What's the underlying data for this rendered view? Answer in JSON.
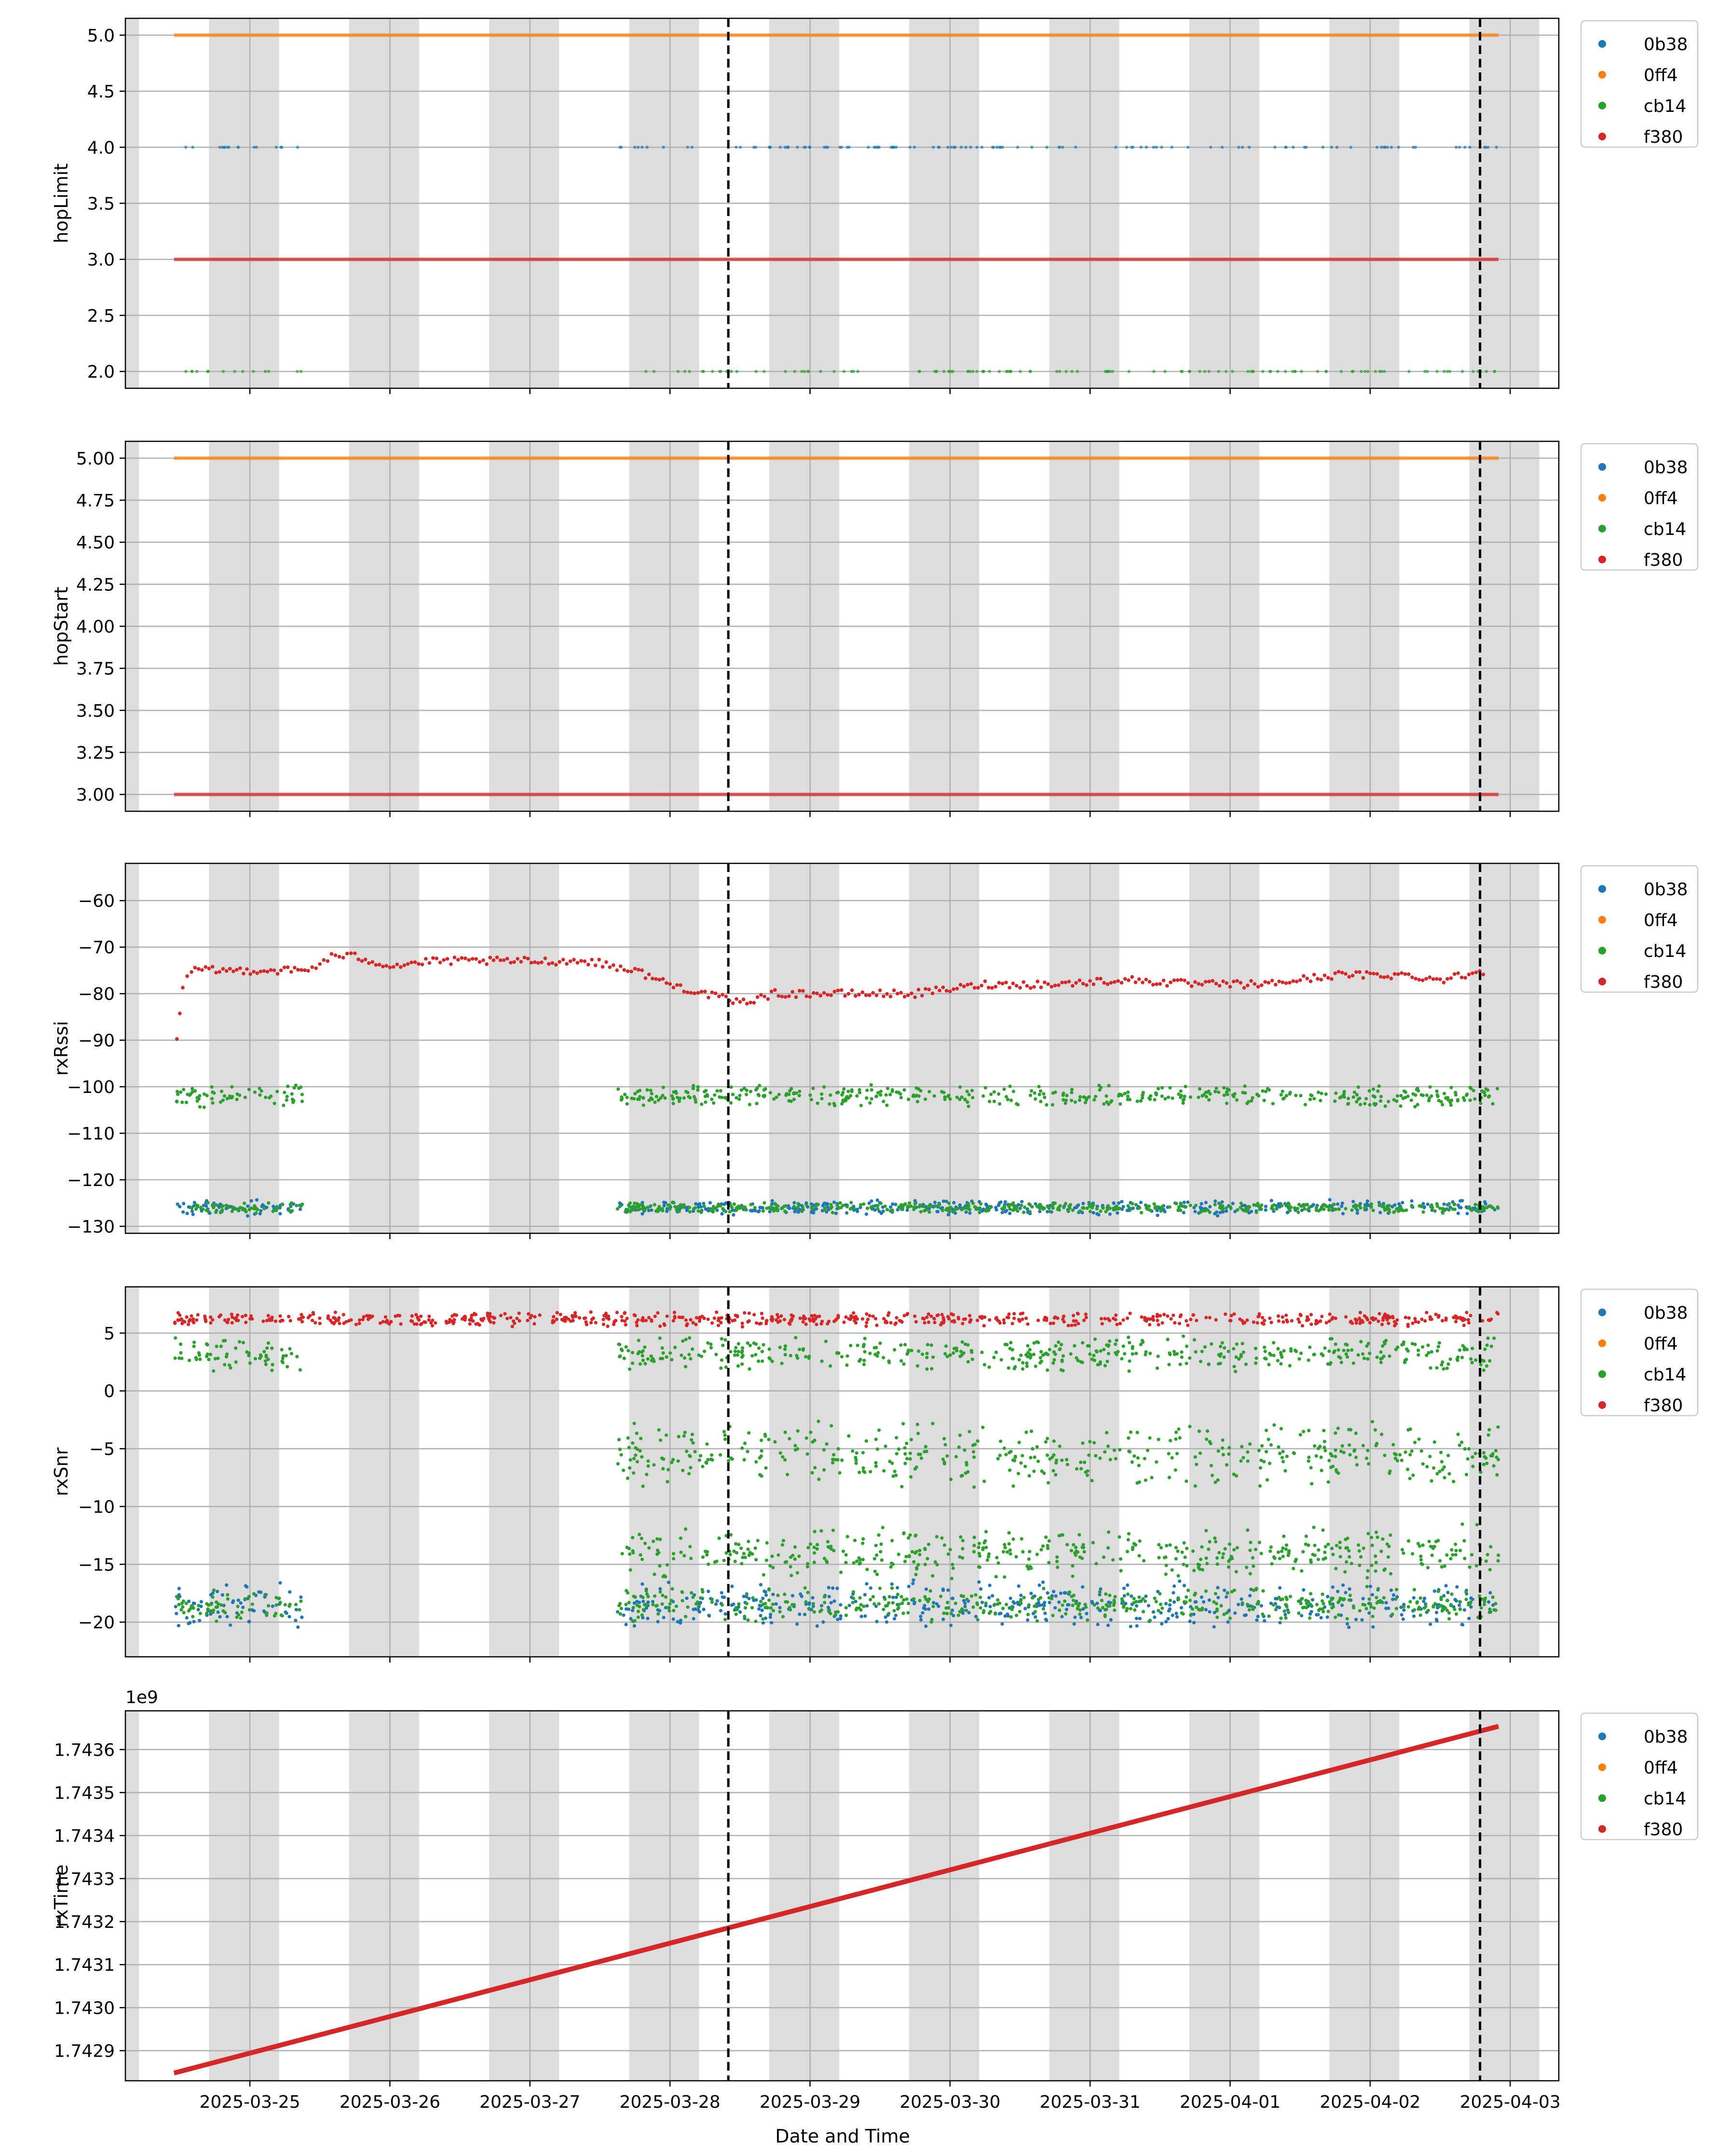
{
  "xaxis": {
    "label": "Date and Time",
    "ticks": [
      "2025-03-25",
      "2025-03-26",
      "2025-03-27",
      "2025-03-28",
      "2025-03-29",
      "2025-03-30",
      "2025-03-31",
      "2025-04-01",
      "2025-04-02",
      "2025-04-03"
    ],
    "range": [
      "2025-03-24 02:40",
      "2025-04-03 08:20"
    ]
  },
  "night_bands": [
    [
      "2025-03-24 02:40",
      "2025-03-24 05:00"
    ],
    [
      "2025-03-24 17:00",
      "2025-03-25 05:00"
    ],
    [
      "2025-03-25 17:00",
      "2025-03-26 05:00"
    ],
    [
      "2025-03-26 17:00",
      "2025-03-27 05:00"
    ],
    [
      "2025-03-27 17:00",
      "2025-03-28 05:00"
    ],
    [
      "2025-03-28 17:00",
      "2025-03-29 05:00"
    ],
    [
      "2025-03-29 17:00",
      "2025-03-30 05:00"
    ],
    [
      "2025-03-30 17:00",
      "2025-03-31 05:00"
    ],
    [
      "2025-03-31 17:00",
      "2025-04-01 05:00"
    ],
    [
      "2025-04-01 17:00",
      "2025-04-02 05:00"
    ],
    [
      "2025-04-02 17:00",
      "2025-04-03 05:00"
    ]
  ],
  "vlines": [
    "2025-03-28 10:00",
    "2025-04-02 18:50"
  ],
  "series_colors": {
    "0b38": "#1f77b4",
    "0ff4": "#ff7f0e",
    "cb14": "#2ca02c",
    "f380": "#d62728"
  },
  "legend": {
    "placement": "outside-upper-right",
    "entries": [
      "0b38",
      "0ff4",
      "cb14",
      "f380"
    ]
  },
  "chart_data": [
    {
      "type": "scatter",
      "ylabel": "hopLimit",
      "ylim": [
        1.85,
        5.15
      ],
      "yticks": [
        "2.0",
        "2.5",
        "3.0",
        "3.5",
        "4.0",
        "4.5",
        "5.0"
      ],
      "grid": true,
      "series": [
        {
          "name": "0ff4",
          "kind": "constant",
          "y": 5.0,
          "segments": [
            [
              "2025-03-24 11:00",
              "2025-04-02 22:00"
            ]
          ]
        },
        {
          "name": "0b38",
          "kind": "scatter",
          "y": 4.0,
          "segments": [
            [
              "2025-03-24 11:00",
              "2025-03-25 09:00"
            ],
            [
              "2025-03-27 15:00",
              "2025-04-02 22:00"
            ]
          ]
        },
        {
          "name": "f380",
          "kind": "constant",
          "y": 3.0,
          "segments": [
            [
              "2025-03-24 11:00",
              "2025-04-02 22:00"
            ]
          ]
        },
        {
          "name": "cb14",
          "kind": "scatter",
          "y": 2.0,
          "segments": [
            [
              "2025-03-24 13:00",
              "2025-03-25 09:00"
            ],
            [
              "2025-03-27 15:00",
              "2025-04-02 22:00"
            ]
          ]
        }
      ]
    },
    {
      "type": "scatter",
      "ylabel": "hopStart",
      "ylim": [
        2.9,
        5.1
      ],
      "yticks": [
        "3.00",
        "3.25",
        "3.50",
        "3.75",
        "4.00",
        "4.25",
        "4.50",
        "4.75",
        "5.00"
      ],
      "grid": true,
      "series": [
        {
          "name": "0ff4",
          "kind": "constant",
          "y": 5.0,
          "segments": [
            [
              "2025-03-24 11:00",
              "2025-04-02 22:00"
            ]
          ]
        },
        {
          "name": "f380",
          "kind": "constant",
          "y": 3.0,
          "segments": [
            [
              "2025-03-24 11:00",
              "2025-04-02 22:00"
            ]
          ]
        }
      ]
    },
    {
      "type": "scatter",
      "ylabel": "rxRssi",
      "ylim": [
        -131.5,
        -52
      ],
      "yticks": [
        "−130",
        "−120",
        "−110",
        "−100",
        "−90",
        "−80",
        "−70",
        "−60"
      ],
      "grid": true,
      "series": [
        {
          "name": "f380",
          "kind": "trace",
          "points": [
            [
              "2025-03-24 11:30",
              -89
            ],
            [
              "2025-03-24 12:30",
              -79
            ],
            [
              "2025-03-24 14:00",
              -75
            ],
            [
              "2025-03-24 20:00",
              -75
            ],
            [
              "2025-03-25 10:00",
              -75
            ],
            [
              "2025-03-25 14:00",
              -72
            ],
            [
              "2025-03-25 18:00",
              -72
            ],
            [
              "2025-03-26 00:00",
              -74
            ],
            [
              "2025-03-26 08:00",
              -73
            ],
            [
              "2025-03-26 16:00",
              -73
            ],
            [
              "2025-03-27 02:00",
              -73
            ],
            [
              "2025-03-27 10:00",
              -73
            ],
            [
              "2025-03-27 18:00",
              -75
            ],
            [
              "2025-03-28 00:00",
              -78
            ],
            [
              "2025-03-28 06:00",
              -80
            ],
            [
              "2025-03-28 12:00",
              -82
            ],
            [
              "2025-03-28 18:00",
              -80
            ],
            [
              "2025-03-29 06:00",
              -80
            ],
            [
              "2025-03-29 18:00",
              -80
            ],
            [
              "2025-03-30 06:00",
              -78
            ],
            [
              "2025-03-30 18:00",
              -78
            ],
            [
              "2025-03-31 06:00",
              -77
            ],
            [
              "2025-03-31 18:00",
              -78
            ],
            [
              "2025-04-01 06:00",
              -78
            ],
            [
              "2025-04-01 18:00",
              -76
            ],
            [
              "2025-04-02 06:00",
              -76
            ],
            [
              "2025-04-02 12:00",
              -77
            ],
            [
              "2025-04-02 20:00",
              -75
            ]
          ]
        },
        {
          "name": "cb14",
          "kind": "band",
          "center": -102,
          "spread": 2.5,
          "segments": [
            [
              "2025-03-24 11:00",
              "2025-03-25 09:00"
            ],
            [
              "2025-03-27 15:00",
              "2025-04-02 22:00"
            ]
          ]
        },
        {
          "name": "0b38",
          "kind": "band",
          "center": -126,
          "spread": 1.8,
          "segments": [
            [
              "2025-03-24 11:00",
              "2025-03-25 09:00"
            ],
            [
              "2025-03-27 15:00",
              "2025-04-02 22:00"
            ]
          ]
        },
        {
          "name": "cb14",
          "kind": "band",
          "center": -126,
          "spread": 1.2,
          "segments": [
            [
              "2025-03-24 14:00",
              "2025-03-25 09:00"
            ],
            [
              "2025-03-27 15:00",
              "2025-04-02 22:00"
            ]
          ]
        }
      ]
    },
    {
      "type": "scatter",
      "ylabel": "rxSnr",
      "ylim": [
        -23,
        9
      ],
      "yticks": [
        "−20",
        "−15",
        "−10",
        "−5",
        "0",
        "5"
      ],
      "grid": true,
      "series": [
        {
          "name": "f380",
          "kind": "band",
          "center": 6.2,
          "spread": 0.7,
          "segments": [
            [
              "2025-03-24 11:00",
              "2025-04-02 22:00"
            ]
          ]
        },
        {
          "name": "cb14",
          "kind": "band",
          "center": 3.2,
          "spread": 1.6,
          "segments": [
            [
              "2025-03-24 11:00",
              "2025-03-25 09:00"
            ],
            [
              "2025-03-27 15:00",
              "2025-04-02 22:00"
            ]
          ]
        },
        {
          "name": "cb14",
          "kind": "band",
          "center": -5.5,
          "spread": 3,
          "segments": [
            [
              "2025-03-27 15:00",
              "2025-04-02 22:00"
            ]
          ]
        },
        {
          "name": "cb14",
          "kind": "band",
          "center": -14,
          "spread": 2.5,
          "segments": [
            [
              "2025-03-27 15:00",
              "2025-04-02 22:00"
            ]
          ]
        },
        {
          "name": "0b38",
          "kind": "band",
          "center": -18.5,
          "spread": 2.2,
          "segments": [
            [
              "2025-03-24 11:00",
              "2025-03-25 09:00"
            ],
            [
              "2025-03-27 15:00",
              "2025-04-02 22:00"
            ]
          ]
        },
        {
          "name": "cb14",
          "kind": "band",
          "center": -18.5,
          "spread": 1.6,
          "segments": [
            [
              "2025-03-24 11:00",
              "2025-03-25 09:00"
            ],
            [
              "2025-03-27 15:00",
              "2025-04-02 22:00"
            ]
          ]
        }
      ]
    },
    {
      "type": "line",
      "ylabel": "rxTime",
      "offset_label": "1e9",
      "ylim": [
        1.74283,
        1.74369
      ],
      "yticks": [
        "1.7429",
        "1.7430",
        "1.7431",
        "1.7432",
        "1.7433",
        "1.7434",
        "1.7435",
        "1.7436"
      ],
      "grid": true,
      "series": [
        {
          "name": "f380",
          "kind": "line",
          "points": [
            [
              "2025-03-24 11:00",
              1.742848
            ],
            [
              "2025-04-02 22:00",
              1.743654
            ]
          ]
        }
      ]
    }
  ]
}
